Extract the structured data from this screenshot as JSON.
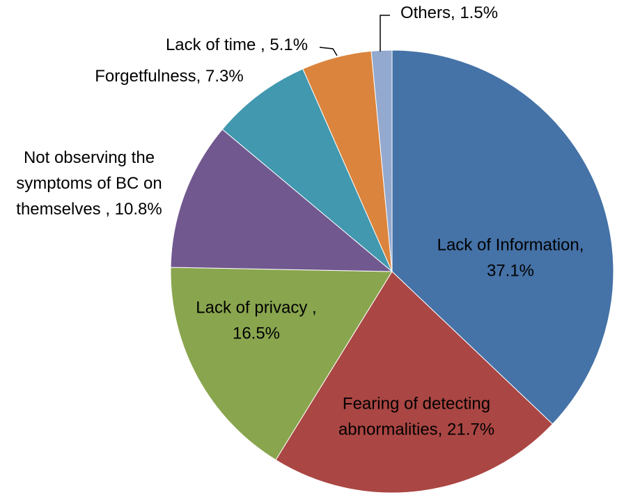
{
  "chart_data": {
    "type": "pie",
    "values": [
      37.1,
      21.7,
      16.5,
      10.8,
      7.3,
      5.1,
      1.5
    ],
    "value_labels": [
      "Lack of Information, 37.1%",
      "Fearing of detecting abnormalities, 21.7%",
      "Lack of privacy , 16.5%",
      "Not observing the symptoms of BC on themselves , 10.8%",
      "Forgetfulness, 7.3%",
      "Lack of time , 5.1%",
      "Others, 1.5%"
    ],
    "colors": [
      "#4572a7",
      "#aa4643",
      "#89a54e",
      "#71588f",
      "#4198af",
      "#db843d",
      "#93a9cf"
    ]
  }
}
